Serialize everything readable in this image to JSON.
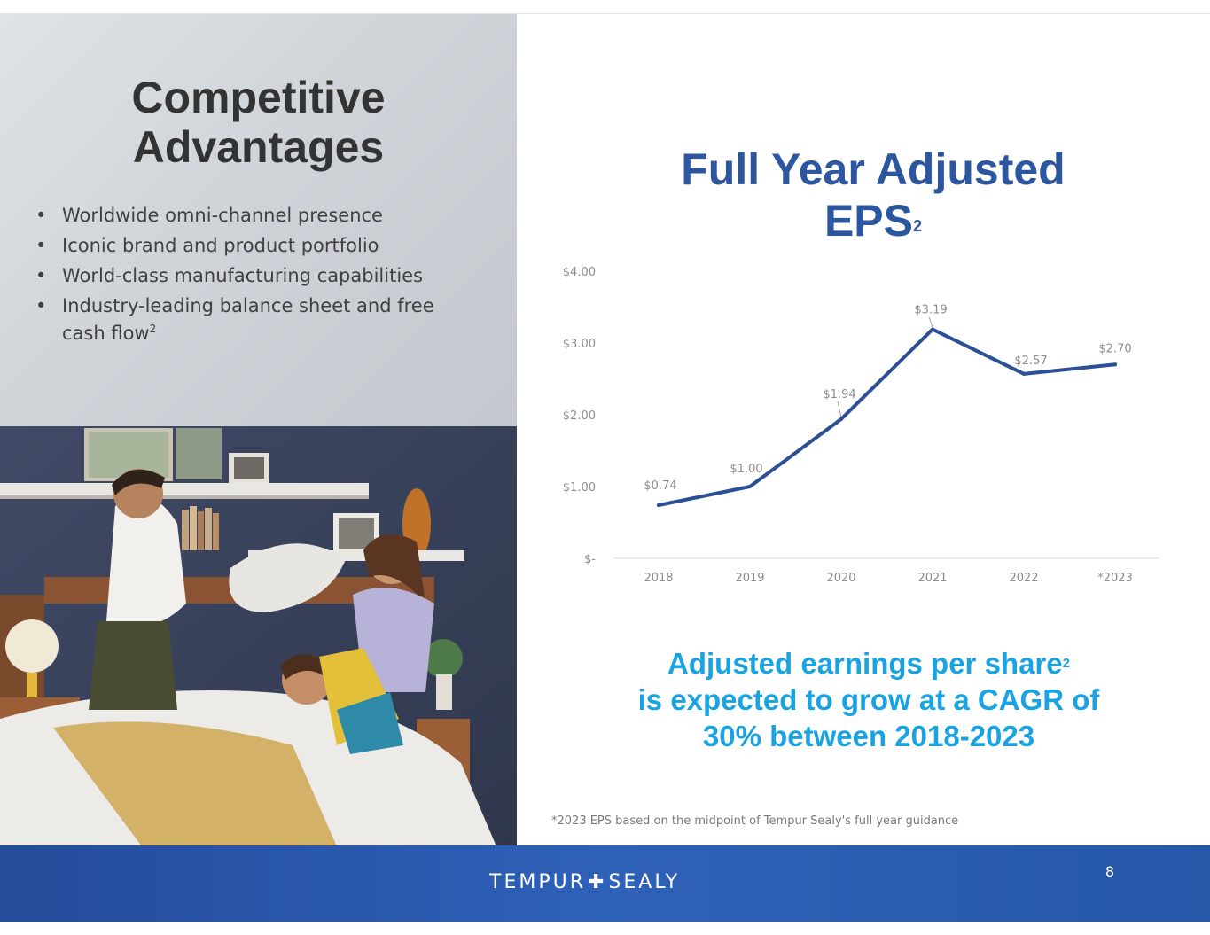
{
  "left": {
    "title_line1": "Competitive",
    "title_line2": "Advantages",
    "bullets": [
      "Worldwide omni-channel presence",
      "Iconic brand and product portfolio",
      "World-class manufacturing capabilities",
      "Industry-leading balance sheet and free"
    ],
    "bullet4_cont": "cash flow",
    "bullet4_sup": "2"
  },
  "chart_title": {
    "line1": "Full Year Adjusted",
    "line2": "EPS",
    "sup": "2"
  },
  "callout": {
    "line1": "Adjusted earnings per share",
    "sup": "2",
    "line2": "is expected to grow at a CAGR of",
    "line3": "30% between 2018-2023"
  },
  "footnote": "*2023 EPS based on the midpoint of Tempur Sealy's full year guidance",
  "footer": {
    "logo_left": "TEMPUR",
    "logo_plus": "✚",
    "logo_right": "SEALY",
    "page_number": "8"
  },
  "colors": {
    "title_blue": "#2c56a0",
    "line": "#2c4f95",
    "callout_cyan": "#1aa3e3",
    "footer_blue": "#2a5aae"
  },
  "chart_data": {
    "type": "line",
    "categories": [
      "2018",
      "2019",
      "2020",
      "2021",
      "2022",
      "*2023"
    ],
    "values": [
      0.74,
      1.0,
      1.94,
      3.19,
      2.57,
      2.7
    ],
    "data_labels": [
      "$0.74",
      "$1.00",
      "$1.94",
      "$3.19",
      "$2.57",
      "$2.70"
    ],
    "y_ticks": [
      0,
      1,
      2,
      3,
      4
    ],
    "y_tick_labels": [
      "$-",
      "$1.00",
      "$2.00",
      "$3.00",
      "$4.00"
    ],
    "ylim": [
      0,
      4
    ],
    "grid": false,
    "legend": "none"
  }
}
